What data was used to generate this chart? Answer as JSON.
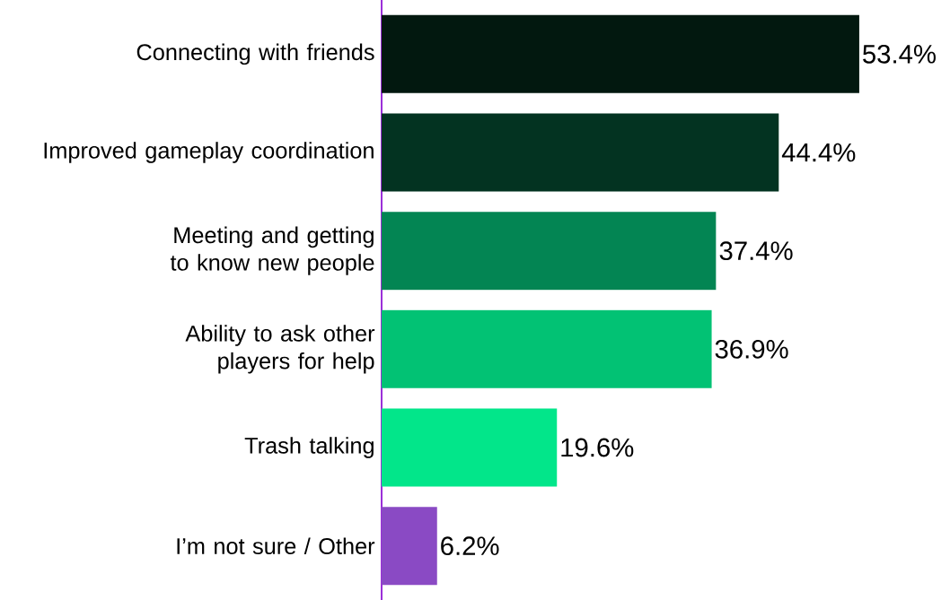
{
  "chart_data": {
    "type": "bar",
    "orientation": "horizontal",
    "categories": [
      "Connecting with friends",
      "Improved gameplay coordination",
      "Meeting and getting to know new people",
      "Ability to ask other players for help",
      "Trash talking",
      "I’m not sure / Other"
    ],
    "values": [
      53.4,
      44.4,
      37.4,
      36.9,
      19.6,
      6.2
    ],
    "value_labels": [
      "53.4%",
      "44.4%",
      "37.4%",
      "36.9%",
      "19.6%",
      "6.2%"
    ],
    "colors": [
      "#02180f",
      "#033321",
      "#038553",
      "#02c274",
      "#02e68a",
      "#8a4ac4"
    ],
    "tick_labels": "y"
  }
}
